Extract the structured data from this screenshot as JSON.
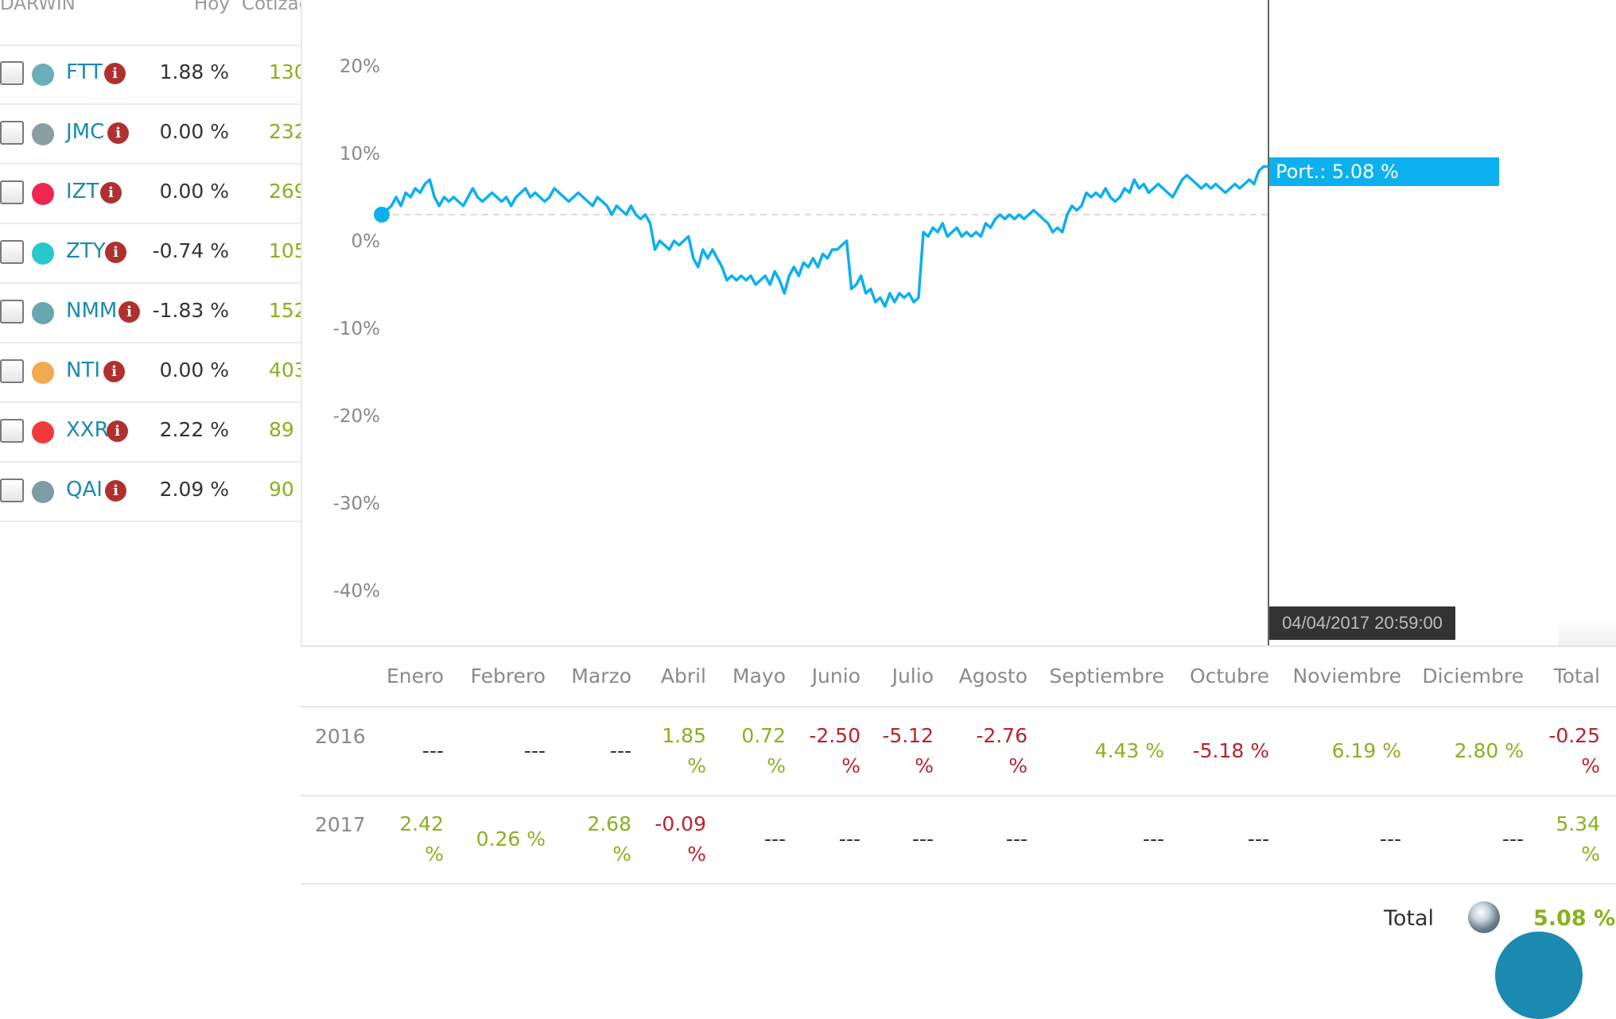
{
  "left_panel": {
    "headers": {
      "darwin": "DARWIN",
      "hoy": "Hoy",
      "cotizacion": "Cotizac"
    },
    "rows": [
      {
        "ticker": "FTT",
        "today": "1.88 %",
        "quote": "130",
        "dot_color": "#6aafb8"
      },
      {
        "ticker": "JMC",
        "today": "0.00 %",
        "quote": "232",
        "dot_color": "#8a9ea6"
      },
      {
        "ticker": "IZT",
        "today": "0.00 %",
        "quote": "269",
        "dot_color": "#ee2750"
      },
      {
        "ticker": "ZTY",
        "today": "-0.74 %",
        "quote": "105",
        "dot_color": "#28c8cc"
      },
      {
        "ticker": "NMM",
        "today": "-1.83 %",
        "quote": "152",
        "dot_color": "#6aa6b0"
      },
      {
        "ticker": "NTI",
        "today": "0.00 %",
        "quote": "403",
        "dot_color": "#f0aa50"
      },
      {
        "ticker": "XXR",
        "today": "2.22 %",
        "quote": "89",
        "dot_color": "#f03a3a"
      },
      {
        "ticker": "QAI",
        "today": "2.09 %",
        "quote": "90",
        "dot_color": "#7e9ca6"
      }
    ],
    "info_icon": "info-icon"
  },
  "chart": {
    "y_ticks": [
      "20%",
      "10%",
      "0%",
      "-10%",
      "-20%",
      "-30%",
      "-40%"
    ],
    "y_values": [
      20,
      10,
      0,
      -10,
      -20,
      -30,
      -40
    ],
    "baseline_value": 3,
    "line_color": "#0cb0ee",
    "series": [
      3,
      3.5,
      4,
      5,
      4,
      5.5,
      5,
      6,
      5.5,
      6.5,
      7,
      5,
      4,
      5,
      4.5,
      5,
      4.5,
      4,
      5,
      6,
      5,
      4.5,
      5,
      5.5,
      5,
      4.5,
      5,
      4,
      5,
      5.5,
      6,
      5,
      5.5,
      5,
      4.5,
      5,
      6,
      5.5,
      5,
      4.5,
      5,
      5.5,
      5,
      4.5,
      4,
      5,
      4.5,
      4,
      3,
      4,
      3.5,
      3,
      4,
      3,
      2.5,
      3,
      2,
      -1,
      0,
      -0.5,
      -1,
      0,
      -0.5,
      0,
      0.5,
      -2,
      -3,
      -1,
      -2,
      -1,
      -2,
      -3,
      -4.5,
      -4,
      -4.5,
      -4,
      -4.5,
      -4,
      -5,
      -4.5,
      -4,
      -5,
      -3.5,
      -4.5,
      -6,
      -4,
      -3,
      -4,
      -2.5,
      -3,
      -2,
      -3,
      -1.5,
      -2,
      -1,
      -1,
      -0.5,
      0,
      -5.5,
      -5,
      -4,
      -6,
      -5.5,
      -7,
      -6.5,
      -7.5,
      -6,
      -7,
      -6,
      -6.5,
      -6,
      -7,
      -6.5,
      1,
      0.5,
      1.5,
      1,
      2,
      0.5,
      1,
      1.5,
      0.5,
      1,
      0.5,
      1,
      0.5,
      2,
      1.5,
      2.5,
      3,
      2.5,
      3,
      2.5,
      3,
      2.5,
      3,
      3.5,
      3,
      2.5,
      2,
      1,
      1.5,
      1,
      3,
      4,
      3.5,
      4,
      5.5,
      5,
      5.5,
      5,
      6,
      5,
      4.5,
      5,
      6,
      5.5,
      7,
      6,
      6.5,
      5.5,
      6,
      6.5,
      6,
      5.5,
      5,
      6,
      7,
      7.5,
      7,
      6.5,
      6,
      6.5,
      6,
      6.5,
      6,
      5.5,
      6,
      6.5,
      6,
      6.5,
      7,
      6.5,
      8,
      8.5,
      8.5
    ],
    "tooltip_value": "Port.: 5.08 %",
    "tooltip_date": "04/04/2017 20:59:00"
  },
  "table": {
    "headers": [
      "Enero",
      "Febrero",
      "Marzo",
      "Abril",
      "Mayo",
      "Junio",
      "Julio",
      "Agosto",
      "Septiembre",
      "Octubre",
      "Noviembre",
      "Diciembre",
      "Total"
    ],
    "rows": [
      {
        "year": "2016",
        "cells": [
          {
            "value": "---",
            "sign": "nil"
          },
          {
            "value": "---",
            "sign": "nil"
          },
          {
            "value": "---",
            "sign": "nil"
          },
          {
            "value": "1.85",
            "unit": "%",
            "sign": "pos"
          },
          {
            "value": "0.72",
            "unit": "%",
            "sign": "pos"
          },
          {
            "value": "-2.50",
            "unit": "%",
            "sign": "neg"
          },
          {
            "value": "-5.12",
            "unit": "%",
            "sign": "neg"
          },
          {
            "value": "-2.76",
            "unit": "%",
            "sign": "neg"
          },
          {
            "value": "4.43 %",
            "sign": "pos"
          },
          {
            "value": "-5.18 %",
            "sign": "neg"
          },
          {
            "value": "6.19 %",
            "sign": "pos"
          },
          {
            "value": "2.80 %",
            "sign": "pos"
          },
          {
            "value": "-0.25",
            "unit": "%",
            "sign": "neg"
          }
        ]
      },
      {
        "year": "2017",
        "cells": [
          {
            "value": "2.42",
            "unit": "%",
            "sign": "pos"
          },
          {
            "value": "0.26 %",
            "sign": "pos"
          },
          {
            "value": "2.68",
            "unit": "%",
            "sign": "pos"
          },
          {
            "value": "-0.09",
            "unit": "%",
            "sign": "neg"
          },
          {
            "value": "---",
            "sign": "nil"
          },
          {
            "value": "---",
            "sign": "nil"
          },
          {
            "value": "---",
            "sign": "nil"
          },
          {
            "value": "---",
            "sign": "nil"
          },
          {
            "value": "---",
            "sign": "nil"
          },
          {
            "value": "---",
            "sign": "nil"
          },
          {
            "value": "---",
            "sign": "nil"
          },
          {
            "value": "---",
            "sign": "nil"
          },
          {
            "value": "5.34",
            "unit": "%",
            "sign": "pos"
          }
        ]
      }
    ],
    "total": {
      "label": "Total",
      "value": "5.08 %",
      "icon": "portfolio-avatar-icon"
    }
  }
}
